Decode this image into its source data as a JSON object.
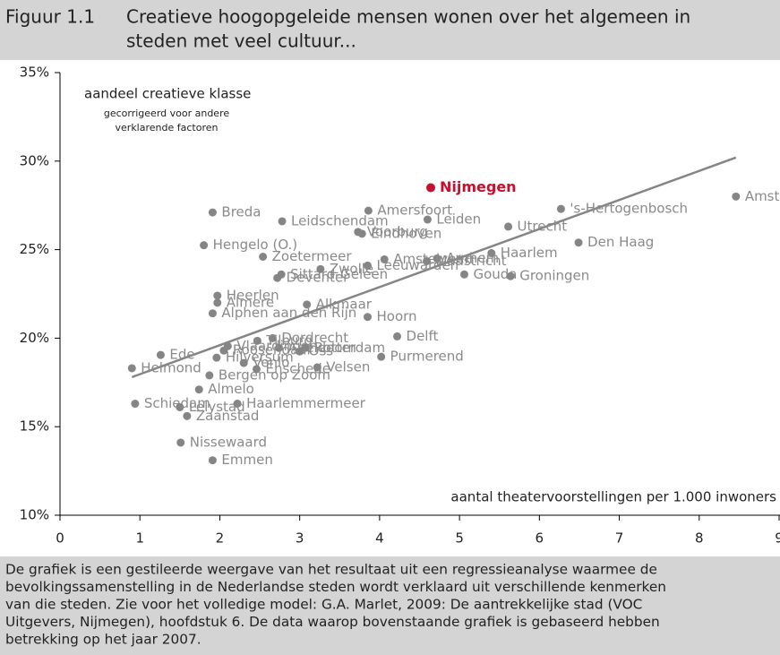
{
  "chart_data": {
    "type": "scatter",
    "figure_label": "Figuur 1.1",
    "title_lines": [
      "Creatieve hoogopgeleide mensen wonen over het algemeen in",
      "steden met veel cultuur..."
    ],
    "y_label": "aandeel creatieve klasse",
    "y_sublabel_lines": [
      "gecorrigeerd voor andere",
      "verklarende factoren"
    ],
    "x_label": "aantal theatervoorstellingen per 1.000 inwoners",
    "xlim": [
      0,
      9
    ],
    "xticks": [
      0,
      1,
      2,
      3,
      4,
      5,
      6,
      7,
      8,
      9
    ],
    "ylim": [
      10,
      35
    ],
    "yticks": [
      {
        "value": 10,
        "label": "10%"
      },
      {
        "value": 15,
        "label": "15%"
      },
      {
        "value": 20,
        "label": "20%"
      },
      {
        "value": 25,
        "label": "25%"
      },
      {
        "value": 30,
        "label": "30%"
      },
      {
        "value": 35,
        "label": "35%"
      }
    ],
    "color": "#858585",
    "trendline": {
      "color": "#858585",
      "x": [
        0.9,
        8.46
      ],
      "values": [
        17.8,
        30.2
      ]
    },
    "points": [
      {
        "label": "Amsterdam",
        "x": 8.46,
        "y": 28.0
      },
      {
        "label": "Nijmegen",
        "x": 4.64,
        "y": 28.5,
        "color": "#c8102e"
      },
      {
        "label": "'s-Hertogenbosch",
        "x": 6.27,
        "y": 27.3
      },
      {
        "label": "Breda",
        "x": 1.91,
        "y": 27.1
      },
      {
        "label": "Amersfoort",
        "x": 3.86,
        "y": 27.2
      },
      {
        "label": "Leidschendam",
        "x": 2.78,
        "y": 26.6
      },
      {
        "label": "Leiden",
        "x": 4.6,
        "y": 26.7
      },
      {
        "label": "Utrecht",
        "x": 5.61,
        "y": 26.3
      },
      {
        "label": "Voorburg",
        "x": 3.73,
        "y": 26.0
      },
      {
        "label": "Eindhoven",
        "x": 3.78,
        "y": 25.9
      },
      {
        "label": "Den Haag",
        "x": 6.49,
        "y": 25.4
      },
      {
        "label": "Hengelo (O.)",
        "x": 1.8,
        "y": 25.25
      },
      {
        "label": "Haarlem",
        "x": 5.4,
        "y": 24.8
      },
      {
        "label": "Zoetermeer",
        "x": 2.54,
        "y": 24.6
      },
      {
        "label": "Amstelveen",
        "x": 4.06,
        "y": 24.45
      },
      {
        "label": "Arnhem",
        "x": 4.72,
        "y": 24.5
      },
      {
        "label": "Maastricht",
        "x": 4.59,
        "y": 24.35
      },
      {
        "label": "Zwolle",
        "x": 3.26,
        "y": 23.9
      },
      {
        "label": "Leeuwarden",
        "x": 3.85,
        "y": 24.1
      },
      {
        "label": "Gouda",
        "x": 5.06,
        "y": 23.6
      },
      {
        "label": "Groningen",
        "x": 5.64,
        "y": 23.5
      },
      {
        "label": "Sittard-Geleen",
        "x": 2.77,
        "y": 23.6
      },
      {
        "label": "Deventer",
        "x": 2.72,
        "y": 23.4
      },
      {
        "label": "Heerlen",
        "x": 1.97,
        "y": 22.4
      },
      {
        "label": "Almere",
        "x": 1.97,
        "y": 22.0
      },
      {
        "label": "Alkmaar",
        "x": 3.09,
        "y": 21.9
      },
      {
        "label": "Alphen aan den Rijn",
        "x": 1.91,
        "y": 21.4
      },
      {
        "label": "Hoorn",
        "x": 3.85,
        "y": 21.2
      },
      {
        "label": "Delft",
        "x": 4.22,
        "y": 20.1
      },
      {
        "label": "Dordrecht",
        "x": 2.66,
        "y": 20.0
      },
      {
        "label": "Tilburg",
        "x": 2.47,
        "y": 19.85
      },
      {
        "label": "Vlaardingen",
        "x": 2.1,
        "y": 19.55
      },
      {
        "label": "Apeldoorn",
        "x": 2.74,
        "y": 19.45
      },
      {
        "label": "Rotterdam",
        "x": 3.07,
        "y": 19.45
      },
      {
        "label": "Ede",
        "x": 1.26,
        "y": 19.05
      },
      {
        "label": "Helmond",
        "x": 0.9,
        "y": 18.3
      },
      {
        "label": "Hilversum",
        "x": 1.96,
        "y": 18.9
      },
      {
        "label": "Roosendaal",
        "x": 2.05,
        "y": 19.3
      },
      {
        "label": "Oss",
        "x": 3.0,
        "y": 19.25
      },
      {
        "label": "Purmerend",
        "x": 4.02,
        "y": 18.95
      },
      {
        "label": "Venlo",
        "x": 2.3,
        "y": 18.6
      },
      {
        "label": "Enschede",
        "x": 2.46,
        "y": 18.25
      },
      {
        "label": "Velsen",
        "x": 3.22,
        "y": 18.35
      },
      {
        "label": "Bergen op Zoom",
        "x": 1.87,
        "y": 17.9
      },
      {
        "label": "Almelo",
        "x": 1.74,
        "y": 17.1
      },
      {
        "label": "Haarlemmermeer",
        "x": 2.22,
        "y": 16.3
      },
      {
        "label": "Schiedam",
        "x": 0.94,
        "y": 16.3
      },
      {
        "label": "Lelystad",
        "x": 1.5,
        "y": 16.1
      },
      {
        "label": "Zaanstad",
        "x": 1.59,
        "y": 15.6
      },
      {
        "label": "Nissewaard",
        "x": 1.51,
        "y": 14.1
      },
      {
        "label": "Emmen",
        "x": 1.91,
        "y": 13.1
      }
    ],
    "caption_lines": [
      "De grafiek is een gestileerde weergave van het resultaat uit een regressieanalyse waarmee de",
      "bevolkingssamenstelling in de Nederlandse steden wordt verklaard uit verschillende kenmerken",
      "van die steden. Zie voor het volledige model: G.A. Marlet, 2009: De aantrekkelijke stad (VOC",
      "Uitgevers, Nijmegen), hoofdstuk 6. De data waarop bovenstaande grafiek is gebaseerd hebben",
      "betrekking op het jaar 2007."
    ]
  }
}
